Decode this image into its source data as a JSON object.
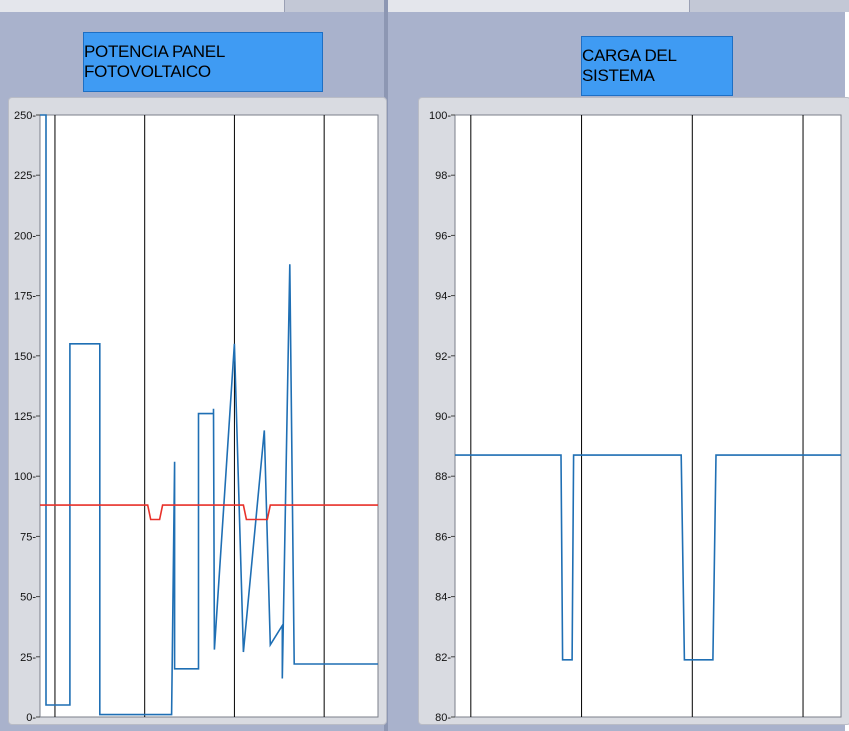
{
  "chart_data": [
    {
      "type": "line",
      "title": "POTENCIA PANEL FOTOVOLTAICO",
      "ylim": [
        0,
        250
      ],
      "yticks": [
        "0",
        "25",
        "50",
        "75",
        "100",
        "125",
        "150",
        "175",
        "200",
        "225",
        "250"
      ],
      "grid": true,
      "series": [
        {
          "color": "#1f6fb4",
          "x": [
            0,
            0.2,
            0.2,
            1.0,
            1.0,
            2.0,
            2.0,
            3.4,
            3.4,
            4.4,
            4.5,
            4.5,
            5.3,
            5.3,
            5.8,
            5.8,
            5.83,
            5.83,
            6.5,
            6.5,
            6.8,
            6.8,
            7.5,
            7.5,
            7.7,
            7.7,
            8.1,
            8.1,
            8.35,
            8.35,
            8.5,
            8.5,
            8.7,
            8.7,
            8.9,
            8.9,
            9.0,
            9.0,
            9.2,
            9.2,
            11.3
          ],
          "y": [
            250,
            250,
            5,
            5,
            155,
            155,
            1,
            1,
            1,
            1,
            106,
            20,
            20,
            126,
            126,
            128,
            28,
            28,
            155,
            155,
            27,
            27,
            119,
            119,
            30,
            30,
            38,
            16,
            188,
            188,
            22,
            22,
            22,
            22,
            22,
            22,
            22,
            22,
            22,
            22,
            22
          ]
        },
        {
          "color": "#e8312a",
          "x": [
            0,
            3.6,
            3.7,
            4.0,
            4.1,
            6.8,
            6.9,
            7.6,
            7.7,
            11.3
          ],
          "y": [
            88,
            88,
            82,
            82,
            88,
            88,
            82,
            82,
            88,
            88
          ]
        }
      ]
    },
    {
      "type": "line",
      "title": "CARGA DEL SISTEMA",
      "ylim": [
        80,
        100
      ],
      "yticks": [
        "80",
        "82",
        "84",
        "86",
        "88",
        "90",
        "92",
        "94",
        "96",
        "98",
        "100"
      ],
      "grid": true,
      "series": [
        {
          "color": "#1f6fb4",
          "x": [
            0,
            3.35,
            3.4,
            3.7,
            3.75,
            7.15,
            7.25,
            8.15,
            8.25,
            12.2
          ],
          "y": [
            88.7,
            88.7,
            81.9,
            81.9,
            88.7,
            88.7,
            81.9,
            81.9,
            88.7,
            88.7
          ]
        }
      ]
    }
  ]
}
